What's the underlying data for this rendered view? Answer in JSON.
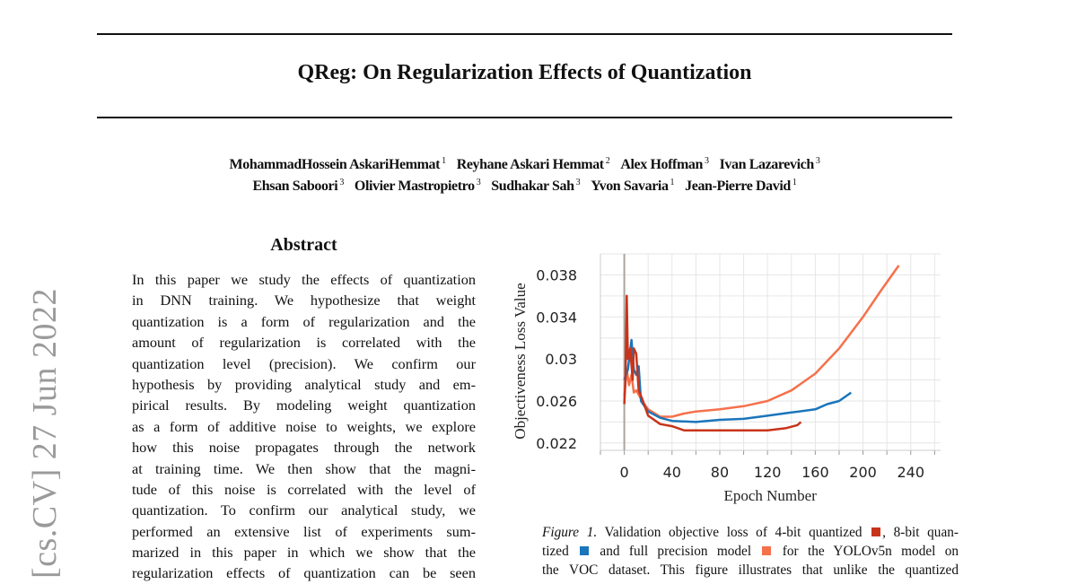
{
  "paper": {
    "title": "QReg: On Regularization Effects of Quantization",
    "authors_line1": [
      {
        "name": "MohammadHossein AskariHemmat",
        "aff": "1"
      },
      {
        "name": "Reyhane Askari Hemmat",
        "aff": "2"
      },
      {
        "name": "Alex Hoffman",
        "aff": "3"
      },
      {
        "name": "Ivan Lazarevich",
        "aff": "3"
      }
    ],
    "authors_line2": [
      {
        "name": "Ehsan Saboori",
        "aff": "3"
      },
      {
        "name": "Olivier Mastropietro",
        "aff": "3"
      },
      {
        "name": "Sudhakar Sah",
        "aff": "3"
      },
      {
        "name": "Yvon Savaria",
        "aff": "1"
      },
      {
        "name": "Jean-Pierre David",
        "aff": "1"
      }
    ],
    "arxiv_stamp": "[cs.CV]  27 Jun 2022",
    "abstract_heading": "Abstract",
    "abstract_lines": [
      "In this paper we study the effects of quantization",
      "in DNN training.  We hypothesize that weight",
      "quantization is a form of regularization and the",
      "amount of regularization is correlated with the",
      "quantization level (precision).  We confirm our",
      "hypothesis by providing analytical study and em-",
      "pirical results. By modeling weight quantization",
      "as a form of additive noise to weights, we explore",
      "how this noise propagates through the network",
      "at training time.  We then show that the magni-",
      "tude of this noise is correlated with the level of",
      "quantization. To confirm our analytical study, we",
      "performed an extensive list of experiments sum-",
      "marized in this paper in which we show that the",
      "regularization effects of quantization can be seen"
    ],
    "caption": {
      "label": "Figure 1.",
      "l1a": " Validation objective loss of 4-bit quantized",
      "l1b": ", 8-bit quan-",
      "l2a": "tized",
      "l2b": "and full precision model",
      "l2c": "for the YOLOv5n model on",
      "l3": "the VOC dataset. This figure illustrates that unlike the quantized"
    }
  },
  "chart_data": {
    "type": "line",
    "title": "",
    "xlabel": "Epoch Number",
    "ylabel": "Objectiveness Loss Value",
    "xlim": [
      -20,
      265
    ],
    "ylim": [
      0.0213,
      0.04
    ],
    "xticks": [
      0,
      40,
      80,
      120,
      160,
      200,
      240
    ],
    "xtick_labels": [
      "0",
      "40",
      "80",
      "120",
      "160",
      "200",
      "240"
    ],
    "yticks": [
      0.022,
      0.026,
      0.03,
      0.034,
      0.038
    ],
    "ytick_labels": [
      "0.022",
      "0.026",
      "0.03",
      "0.034",
      "0.038"
    ],
    "grid": true,
    "x_gridstep": 20,
    "y_gridstep": 0.002,
    "series": [
      {
        "name": "full precision",
        "color": "#f5714b",
        "x": [
          0,
          2,
          4,
          6,
          8,
          10,
          15,
          20,
          30,
          40,
          50,
          60,
          80,
          100,
          120,
          140,
          160,
          180,
          200,
          215,
          230
        ],
        "y": [
          0.0265,
          0.029,
          0.0275,
          0.0285,
          0.0268,
          0.027,
          0.026,
          0.0252,
          0.0245,
          0.0245,
          0.0248,
          0.025,
          0.0252,
          0.0255,
          0.026,
          0.027,
          0.0286,
          0.031,
          0.034,
          0.0365,
          0.0389
        ]
      },
      {
        "name": "8-bit quantized",
        "color": "#1b75bb",
        "x": [
          0,
          3,
          6,
          8,
          10,
          12,
          14,
          20,
          30,
          40,
          60,
          80,
          100,
          120,
          140,
          160,
          170,
          180,
          190
        ],
        "y": [
          0.028,
          0.029,
          0.0318,
          0.029,
          0.0285,
          0.0293,
          0.026,
          0.025,
          0.0244,
          0.0241,
          0.024,
          0.0242,
          0.0243,
          0.0246,
          0.0249,
          0.0252,
          0.0257,
          0.026,
          0.0268
        ]
      },
      {
        "name": "4-bit quantized",
        "color": "#c8341a",
        "x": [
          0,
          1,
          2,
          3,
          5,
          7,
          8,
          10,
          12,
          15,
          20,
          30,
          40,
          50,
          60,
          80,
          100,
          120,
          135,
          145,
          148
        ],
        "y": [
          0.0257,
          0.028,
          0.036,
          0.03,
          0.031,
          0.028,
          0.031,
          0.0305,
          0.027,
          0.0262,
          0.0246,
          0.0238,
          0.0236,
          0.0232,
          0.0232,
          0.0232,
          0.0232,
          0.0232,
          0.0234,
          0.0237,
          0.024
        ]
      }
    ]
  }
}
